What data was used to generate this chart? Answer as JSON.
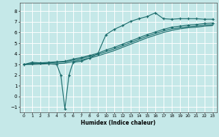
{
  "xlabel": "Humidex (Indice chaleur)",
  "xlim": [
    -0.5,
    23.5
  ],
  "ylim": [
    -1.5,
    8.8
  ],
  "yticks": [
    -1,
    0,
    1,
    2,
    3,
    4,
    5,
    6,
    7,
    8
  ],
  "xticks": [
    0,
    1,
    2,
    3,
    4,
    5,
    6,
    7,
    8,
    9,
    10,
    11,
    12,
    13,
    14,
    15,
    16,
    17,
    18,
    19,
    20,
    21,
    22,
    23
  ],
  "bg_color": "#c5e8e8",
  "grid_color": "#ffffff",
  "line_color": "#1a6b6b",
  "line1_x": [
    0,
    1,
    2,
    3,
    4,
    5,
    6,
    7,
    8,
    9,
    10,
    11,
    12,
    13,
    14,
    15,
    16,
    17,
    18,
    19,
    20,
    21,
    22,
    23
  ],
  "line1_y": [
    3.0,
    3.1,
    3.15,
    3.2,
    3.25,
    3.3,
    3.5,
    3.65,
    3.85,
    4.05,
    4.35,
    4.6,
    4.9,
    5.2,
    5.5,
    5.8,
    6.05,
    6.3,
    6.5,
    6.6,
    6.7,
    6.75,
    6.85,
    6.9
  ],
  "line2_x": [
    0,
    1,
    2,
    3,
    4,
    5,
    6,
    7,
    8,
    9,
    10,
    11,
    12,
    13,
    14,
    15,
    16,
    17,
    18,
    19,
    20,
    21,
    22,
    23
  ],
  "line2_y": [
    3.0,
    3.05,
    3.1,
    3.15,
    3.2,
    3.25,
    3.4,
    3.55,
    3.75,
    3.95,
    4.2,
    4.45,
    4.75,
    5.05,
    5.35,
    5.65,
    5.9,
    6.15,
    6.35,
    6.45,
    6.55,
    6.6,
    6.7,
    6.75
  ],
  "line3_x": [
    0,
    1,
    2,
    3,
    4,
    4.5,
    5,
    5.5,
    6,
    7,
    8,
    9,
    10,
    11,
    12,
    13,
    14,
    15,
    16,
    17,
    18,
    19,
    20,
    21,
    22,
    23
  ],
  "line3_y": [
    3.0,
    3.2,
    3.15,
    3.05,
    3.0,
    2.0,
    -1.15,
    2.0,
    3.2,
    3.3,
    3.6,
    4.0,
    5.8,
    6.3,
    6.65,
    7.05,
    7.3,
    7.5,
    7.85,
    7.3,
    7.25,
    7.3,
    7.3,
    7.3,
    7.25,
    7.25
  ],
  "line4_x": [
    0,
    1,
    2,
    3,
    4,
    5,
    6,
    7,
    8,
    9,
    10,
    11,
    12,
    13,
    14,
    15,
    16,
    17,
    18,
    19,
    20,
    21,
    22,
    23
  ],
  "line4_y": [
    3.0,
    3.0,
    3.02,
    3.05,
    3.08,
    3.12,
    3.28,
    3.42,
    3.6,
    3.8,
    4.05,
    4.3,
    4.6,
    4.9,
    5.2,
    5.5,
    5.75,
    6.0,
    6.2,
    6.35,
    6.45,
    6.5,
    6.6,
    6.65
  ]
}
